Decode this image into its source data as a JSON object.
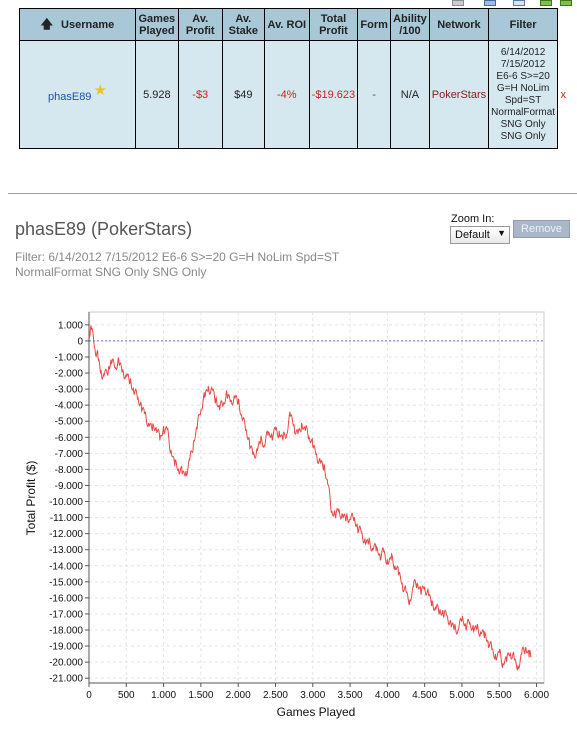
{
  "table": {
    "headers": {
      "username": "Username",
      "games_played": [
        "Games",
        "Played"
      ],
      "av_profit": [
        "Av.",
        "Profit"
      ],
      "av_stake": [
        "Av.",
        "Stake"
      ],
      "av_roi": "Av. ROI",
      "total_profit": [
        "Total",
        "Profit"
      ],
      "form": "Form",
      "ability": [
        "Ability",
        "/100"
      ],
      "network": "Network",
      "filter": "Filter"
    },
    "row": {
      "username": "phasE89",
      "games_played": "5.928",
      "av_profit": "-$3",
      "av_stake": "$49",
      "av_roi": "-4%",
      "total_profit": "-$19.623",
      "form": "-",
      "ability": "N/A",
      "network": "PokerStars",
      "filter_lines": [
        "6/14/2012",
        "7/15/2012",
        "E6-6 S>=20",
        "G=H NoLim",
        "Spd=ST",
        "NormalFormat",
        "SNG Only",
        "SNG Only"
      ],
      "delete": "x"
    }
  },
  "detail": {
    "title": "phasE89 (PokerStars)",
    "filter_text": "Filter: 6/14/2012 7/15/2012 E6-6 S>=20 G=H NoLim Spd=ST NormalFormat SNG Only SNG Only",
    "zoom_label": "Zoom In:",
    "zoom_value": "Default",
    "remove_label": "Remove"
  },
  "icons": {
    "sort": "up-arrow-icon",
    "favorite": "star-icon",
    "dropdown": "chevron-down-icon"
  },
  "colors": {
    "header_bg": "#a8c8d8",
    "row_bg": "#d6e8ef",
    "negative": "#cc2222",
    "line": "#e84848"
  },
  "chart_data": {
    "type": "line",
    "xlabel": "Games Played",
    "ylabel": "Total Profit ($)",
    "xlim": [
      0,
      6100
    ],
    "ylim": [
      -21300,
      1800
    ],
    "x_ticks": [
      0,
      500,
      1000,
      1500,
      2000,
      2500,
      3000,
      3500,
      4000,
      4500,
      5000,
      5500,
      6000
    ],
    "x_tick_labels": [
      "0",
      "500",
      "1.000",
      "1.500",
      "2.000",
      "2.500",
      "3.000",
      "3.500",
      "4.000",
      "4.500",
      "5.000",
      "5.500",
      "6.000"
    ],
    "y_ticks": [
      1000,
      0,
      -1000,
      -2000,
      -3000,
      -4000,
      -5000,
      -6000,
      -7000,
      -8000,
      -9000,
      -10000,
      -11000,
      -12000,
      -13000,
      -14000,
      -15000,
      -16000,
      -17000,
      -18000,
      -19000,
      -20000,
      -21000
    ],
    "y_tick_labels": [
      "1.000",
      "0",
      "-1.000",
      "-2.000",
      "-3.000",
      "-4.000",
      "-5.000",
      "-6.000",
      "-7.000",
      "-8.000",
      "-9.000",
      "-10.000",
      "-11.000",
      "-12.000",
      "-13.000",
      "-14.000",
      "-15.000",
      "-16.000",
      "-17.000",
      "-18.000",
      "-19.000",
      "-20.000",
      "-21.000"
    ],
    "zero_line": true,
    "grid": true,
    "series": [
      {
        "x": [
          0,
          30,
          80,
          120,
          160,
          200,
          260,
          300,
          350,
          400,
          450,
          500,
          550,
          600,
          650,
          700,
          750,
          800,
          850,
          900,
          950,
          1000,
          1050,
          1100,
          1150,
          1200,
          1250,
          1300,
          1350,
          1400,
          1450,
          1500,
          1550,
          1600,
          1650,
          1700,
          1750,
          1800,
          1850,
          1900,
          1950,
          2000,
          2050,
          2100,
          2150,
          2200,
          2250,
          2300,
          2350,
          2400,
          2450,
          2500,
          2550,
          2600,
          2650,
          2700,
          2750,
          2800,
          2850,
          2900,
          2950,
          3000,
          3050,
          3100,
          3150,
          3200,
          3250,
          3300,
          3350,
          3400,
          3450,
          3500,
          3550,
          3600,
          3650,
          3700,
          3750,
          3800,
          3850,
          3900,
          3950,
          4000,
          4050,
          4100,
          4150,
          4200,
          4250,
          4300,
          4350,
          4400,
          4450,
          4500,
          4550,
          4600,
          4650,
          4700,
          4750,
          4800,
          4850,
          4900,
          4950,
          5000,
          5050,
          5100,
          5150,
          5200,
          5250,
          5300,
          5350,
          5400,
          5450,
          5500,
          5550,
          5600,
          5650,
          5700,
          5750,
          5800,
          5850,
          5900,
          5928
        ],
        "y": [
          200,
          700,
          -500,
          -1000,
          -1800,
          -2200,
          -1800,
          -1400,
          -1700,
          -1200,
          -1800,
          -2100,
          -2600,
          -3200,
          -3600,
          -3900,
          -4500,
          -5100,
          -5600,
          -5400,
          -6200,
          -5300,
          -5500,
          -6800,
          -7800,
          -8000,
          -8300,
          -8100,
          -7400,
          -6300,
          -5500,
          -4300,
          -3500,
          -2800,
          -3000,
          -3600,
          -4300,
          -4000,
          -3300,
          -3700,
          -3400,
          -3800,
          -4800,
          -5600,
          -6200,
          -7100,
          -6700,
          -6300,
          -6500,
          -5900,
          -5800,
          -5500,
          -5600,
          -6200,
          -5800,
          -4700,
          -5200,
          -5800,
          -5100,
          -5600,
          -6000,
          -6600,
          -7000,
          -7500,
          -7700,
          -8900,
          -10700,
          -10900,
          -10500,
          -10800,
          -11000,
          -11100,
          -11200,
          -11600,
          -11900,
          -12300,
          -12600,
          -12900,
          -13100,
          -13300,
          -13100,
          -13600,
          -13600,
          -14000,
          -14600,
          -15100,
          -15600,
          -16100,
          -15300,
          -15100,
          -15800,
          -15300,
          -15700,
          -16200,
          -16700,
          -16900,
          -17100,
          -17100,
          -17500,
          -17800,
          -18000,
          -17400,
          -17800,
          -17600,
          -17700,
          -17900,
          -18100,
          -18500,
          -18700,
          -19200,
          -19500,
          -19400,
          -20100,
          -20000,
          -19400,
          -19800,
          -20200,
          -19500,
          -19100,
          -19700,
          -19623
        ]
      }
    ]
  }
}
